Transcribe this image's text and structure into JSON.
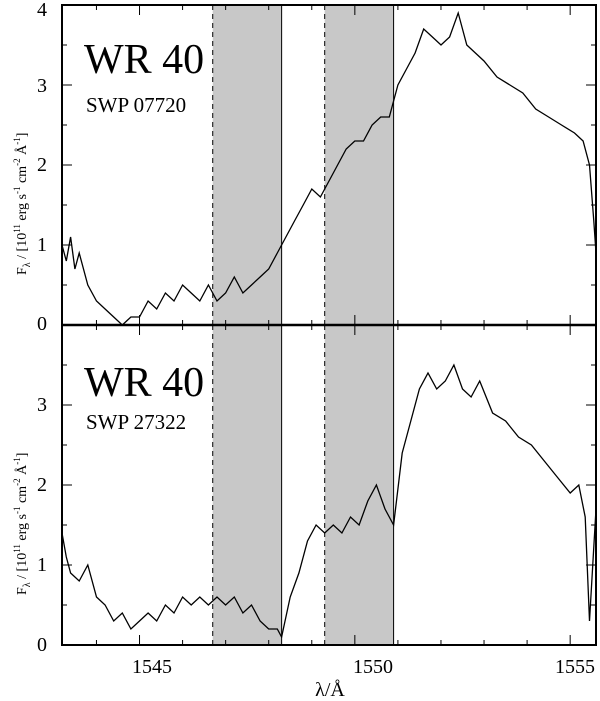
{
  "chart_data": [
    {
      "type": "line",
      "star_name": "WR 40",
      "observation": "SWP 07720",
      "ylabel_main": "F",
      "ylabel_sub": "λ",
      "ylabel_rest": " / [10",
      "ylabel_exp1": "11",
      "ylabel_unit1": " erg s",
      "ylabel_exp2": "-1",
      "ylabel_unit2": " cm",
      "ylabel_exp3": "-2",
      "ylabel_unit3": " Å",
      "ylabel_exp4": "-1",
      "ylabel_close": "]",
      "xlim": [
        1543.2,
        1555.6
      ],
      "ylim": [
        0,
        4
      ],
      "yticks": [
        0,
        1,
        2,
        3,
        4
      ],
      "ytick_labels": [
        "0",
        "1",
        "2",
        "3",
        "4"
      ],
      "shaded_bands": [
        [
          1546.7,
          1548.3
        ],
        [
          1549.3,
          1550.9
        ]
      ],
      "dashed_edges": [
        1546.7,
        1549.3
      ],
      "solid_edges": [
        1548.3,
        1550.9
      ],
      "series": [
        {
          "x": [
            1543.2,
            1543.3,
            1543.4,
            1543.5,
            1543.6,
            1543.8,
            1544.0,
            1544.2,
            1544.4,
            1544.6,
            1544.8,
            1545.0,
            1545.2,
            1545.4,
            1545.6,
            1545.8,
            1546.0,
            1546.2,
            1546.4,
            1546.6,
            1546.8,
            1547.0,
            1547.2,
            1547.4,
            1547.6,
            1547.8,
            1548.0,
            1548.2,
            1548.4,
            1548.6,
            1548.8,
            1549.0,
            1549.2,
            1549.4,
            1549.6,
            1549.8,
            1550.0,
            1550.2,
            1550.4,
            1550.6,
            1550.8,
            1551.0,
            1551.2,
            1551.4,
            1551.6,
            1551.8,
            1552.0,
            1552.2,
            1552.4,
            1552.6,
            1552.8,
            1553.0,
            1553.3,
            1553.6,
            1553.9,
            1554.2,
            1554.5,
            1554.8,
            1555.1,
            1555.3,
            1555.45,
            1555.55,
            1555.6
          ],
          "y": [
            1.0,
            0.8,
            1.1,
            0.7,
            0.9,
            0.5,
            0.3,
            0.2,
            0.1,
            0.0,
            0.1,
            0.1,
            0.3,
            0.2,
            0.4,
            0.3,
            0.5,
            0.4,
            0.3,
            0.5,
            0.3,
            0.4,
            0.6,
            0.4,
            0.5,
            0.6,
            0.7,
            0.9,
            1.1,
            1.3,
            1.5,
            1.7,
            1.6,
            1.8,
            2.0,
            2.2,
            2.3,
            2.3,
            2.5,
            2.6,
            2.6,
            3.0,
            3.2,
            3.4,
            3.7,
            3.6,
            3.5,
            3.6,
            3.9,
            3.5,
            3.4,
            3.3,
            3.1,
            3.0,
            2.9,
            2.7,
            2.6,
            2.5,
            2.4,
            2.3,
            2.0,
            1.3,
            0.9
          ]
        }
      ]
    },
    {
      "type": "line",
      "star_name": "WR 40",
      "observation": "SWP 27322",
      "xlabel": "λ/Å",
      "xticks": [
        1545,
        1550,
        1555
      ],
      "xtick_labels": [
        "1545",
        "1550",
        "1555"
      ],
      "ylabel_main": "F",
      "ylabel_sub": "λ",
      "ylabel_rest": " / [10",
      "ylabel_exp1": "11",
      "ylabel_unit1": " erg s",
      "ylabel_exp2": "-1",
      "ylabel_unit2": " cm",
      "ylabel_exp3": "-2",
      "ylabel_unit3": " Å",
      "ylabel_exp4": "-1",
      "ylabel_close": "]",
      "xlim": [
        1543.2,
        1555.6
      ],
      "ylim": [
        0,
        4
      ],
      "yticks": [
        0,
        1,
        2,
        3
      ],
      "ytick_labels": [
        "0",
        "1",
        "2",
        "3"
      ],
      "shaded_bands": [
        [
          1546.7,
          1548.3
        ],
        [
          1549.3,
          1550.9
        ]
      ],
      "dashed_edges": [
        1546.7,
        1549.3
      ],
      "solid_edges": [
        1548.3,
        1550.9
      ],
      "series": [
        {
          "x": [
            1543.2,
            1543.3,
            1543.4,
            1543.6,
            1543.8,
            1544.0,
            1544.2,
            1544.4,
            1544.6,
            1544.8,
            1545.0,
            1545.2,
            1545.4,
            1545.6,
            1545.8,
            1546.0,
            1546.2,
            1546.4,
            1546.6,
            1546.8,
            1547.0,
            1547.2,
            1547.4,
            1547.6,
            1547.8,
            1548.0,
            1548.2,
            1548.3,
            1548.5,
            1548.7,
            1548.9,
            1549.1,
            1549.3,
            1549.5,
            1549.7,
            1549.9,
            1550.1,
            1550.3,
            1550.5,
            1550.7,
            1550.9,
            1551.1,
            1551.3,
            1551.5,
            1551.7,
            1551.9,
            1552.1,
            1552.3,
            1552.5,
            1552.7,
            1552.9,
            1553.2,
            1553.5,
            1553.8,
            1554.1,
            1554.4,
            1554.7,
            1555.0,
            1555.2,
            1555.35,
            1555.45,
            1555.6
          ],
          "y": [
            1.4,
            1.1,
            0.9,
            0.8,
            1.0,
            0.6,
            0.5,
            0.3,
            0.4,
            0.2,
            0.3,
            0.4,
            0.3,
            0.5,
            0.4,
            0.6,
            0.5,
            0.6,
            0.5,
            0.6,
            0.5,
            0.6,
            0.4,
            0.5,
            0.3,
            0.2,
            0.2,
            0.1,
            0.6,
            0.9,
            1.3,
            1.5,
            1.4,
            1.5,
            1.4,
            1.6,
            1.5,
            1.8,
            2.0,
            1.7,
            1.5,
            2.4,
            2.8,
            3.2,
            3.4,
            3.2,
            3.3,
            3.5,
            3.2,
            3.1,
            3.3,
            2.9,
            2.8,
            2.6,
            2.5,
            2.3,
            2.1,
            1.9,
            2.0,
            1.6,
            0.3,
            1.7
          ]
        }
      ]
    }
  ]
}
